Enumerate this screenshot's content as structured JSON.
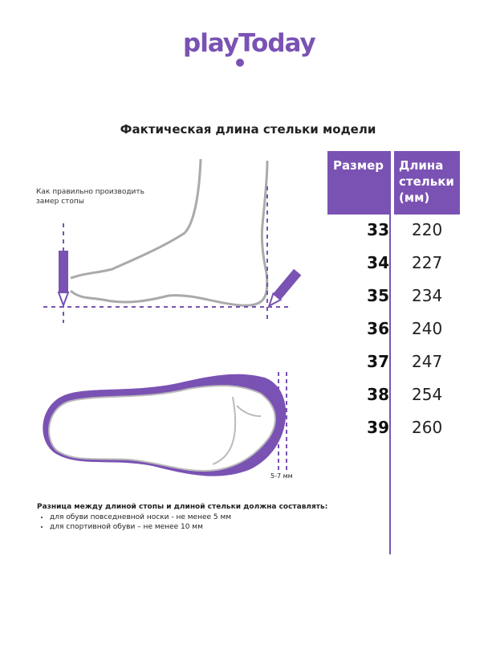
{
  "brand": {
    "logo": "playToday",
    "color": "#7a52b3"
  },
  "title": "Фактическая длина стельки модели",
  "measure_hint": [
    "Как правильно производить",
    "замер стопы"
  ],
  "table": {
    "headers": [
      "Размер",
      "Длина стельки (мм)"
    ],
    "rows": [
      {
        "size": "33",
        "length": "220"
      },
      {
        "size": "34",
        "length": "227"
      },
      {
        "size": "35",
        "length": "234"
      },
      {
        "size": "36",
        "length": "240"
      },
      {
        "size": "37",
        "length": "247"
      },
      {
        "size": "38",
        "length": "254"
      },
      {
        "size": "39",
        "length": "260"
      }
    ]
  },
  "gap_label": "5-7 мм",
  "note": {
    "heading": "Разница между длиной стопы и длиной стельки должна составлять:",
    "items": [
      "для обуви повседневной носки -  не менее 5 мм",
      "для спортивной обуви – не менее 10 мм"
    ]
  }
}
